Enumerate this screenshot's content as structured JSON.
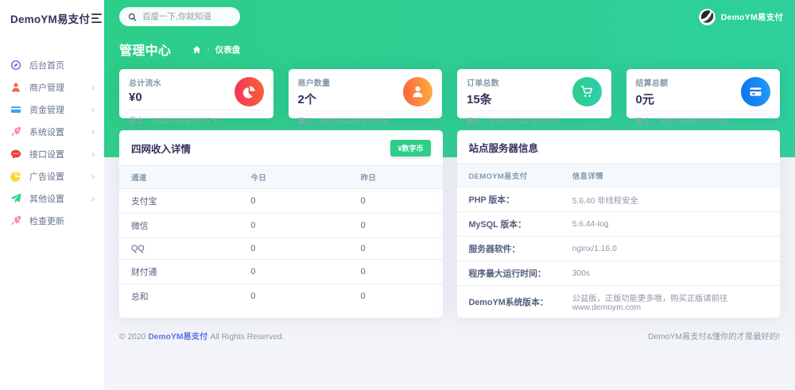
{
  "app": {
    "brand": "DemoYM易支付",
    "user_name": "DemoYM易支付"
  },
  "topbar": {
    "search_placeholder": "百度一下,你就知道"
  },
  "sidebar": {
    "items": [
      {
        "label": "后台首页",
        "icon": "compass-icon",
        "glyph": "compass",
        "color": "#5e72e4",
        "has_submenu": false
      },
      {
        "label": "商户管理",
        "icon": "user-icon",
        "glyph": "user",
        "color": "#f5654a",
        "has_submenu": true
      },
      {
        "label": "资金管理",
        "icon": "credit-card-icon",
        "glyph": "credit-card",
        "color": "#36a3f7",
        "has_submenu": true
      },
      {
        "label": "系统设置",
        "icon": "rocket-icon",
        "glyph": "rocket",
        "color": "#f48fb1",
        "has_submenu": true
      },
      {
        "label": "接口设置",
        "icon": "comment-icon",
        "glyph": "comment",
        "color": "#e8413d",
        "has_submenu": true
      },
      {
        "label": "广告设置",
        "icon": "pie-icon",
        "glyph": "pie",
        "color": "#fdd835",
        "has_submenu": true
      },
      {
        "label": "其他设置",
        "icon": "paper-plane-icon",
        "glyph": "paper-plane",
        "color": "#2dce89",
        "has_submenu": true
      },
      {
        "label": "检查更新",
        "icon": "rocket-icon",
        "glyph": "rocket",
        "color": "#f48fb1",
        "has_submenu": false
      }
    ]
  },
  "header": {
    "title": "管理中心",
    "separator": "-",
    "breadcrumb_current": "仪表盘"
  },
  "stat_cards": [
    {
      "label": "总计流水",
      "value": "¥0",
      "footer": "截止：2020-04-26 10:27:11",
      "icon": "pie-chart-icon",
      "glyph": "pie-chart",
      "gradient": [
        "#f5365c",
        "#f56036"
      ]
    },
    {
      "label": "商户数量",
      "value": "2个",
      "footer": "截止：2020-04-26 10:27:11",
      "icon": "person-icon",
      "glyph": "user",
      "gradient": [
        "#fb6340",
        "#fbb140"
      ]
    },
    {
      "label": "订单总数",
      "value": "15条",
      "footer": "截止：2020-04-26 10:27:11",
      "icon": "cart-icon",
      "glyph": "cart",
      "gradient": [
        "#2dce89",
        "#2dcead"
      ]
    },
    {
      "label": "结算总额",
      "value": "0元",
      "footer": "截止：2020-04-26 10:27:11",
      "icon": "credit-card-icon",
      "glyph": "card",
      "gradient": [
        "#1171ef",
        "#1e9bf5"
      ]
    }
  ],
  "income_panel": {
    "title": "四网收入详情",
    "button_label": "¥数字币",
    "columns": [
      "通道",
      "今日",
      "昨日"
    ],
    "rows": [
      [
        "支付宝",
        "0",
        "0"
      ],
      [
        "微信",
        "0",
        "0"
      ],
      [
        "QQ",
        "0",
        "0"
      ],
      [
        "财付通",
        "0",
        "0"
      ],
      [
        "总和",
        "0",
        "0"
      ]
    ]
  },
  "server_panel": {
    "title": "站点服务器信息",
    "columns": [
      "DEMOYM易支付",
      "信息详情"
    ],
    "rows": [
      [
        "PHP 版本：",
        "5.6.40 非线程安全"
      ],
      [
        "MySQL 版本：",
        "5.6.44-log"
      ],
      [
        "服务器软件：",
        "nginx/1.16.0"
      ],
      [
        "程序最大运行时间：",
        "300s"
      ],
      [
        "DemoYM系统版本：",
        "公益版，正版功能更多哦，购买正版请前往www.demoym.com"
      ]
    ]
  },
  "footer": {
    "left_prefix": "© 2020",
    "brand": "DemoYM易支付",
    "left_suffix": "All Rights Reserved.",
    "right": "DemoYM易支付&懂你的才是最好的!"
  }
}
